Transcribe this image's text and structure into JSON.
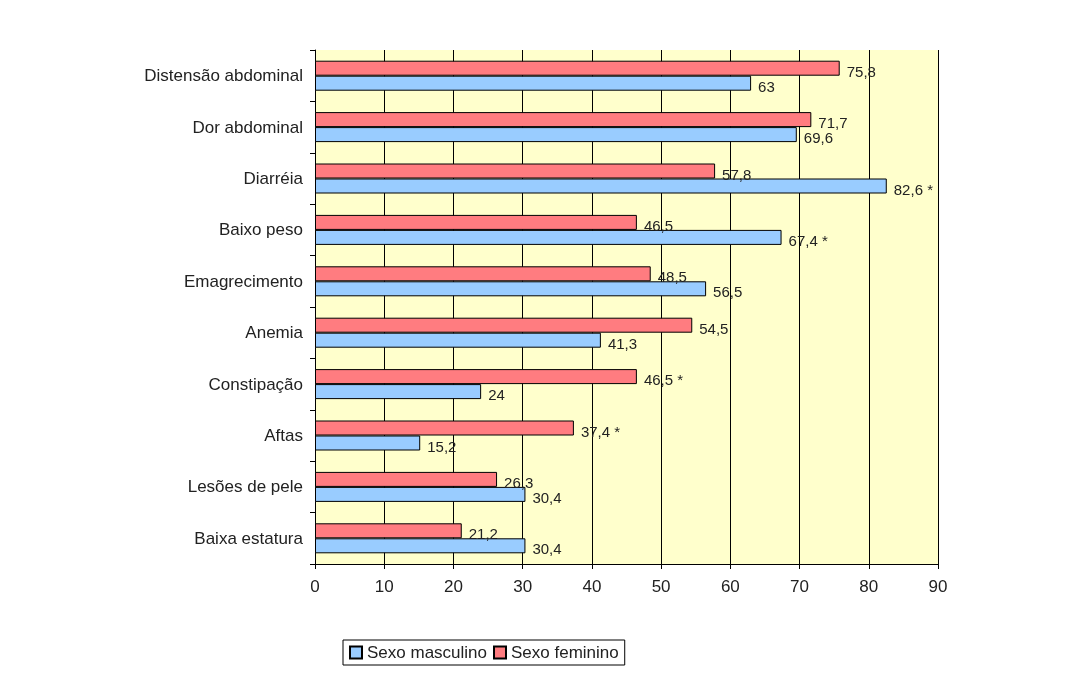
{
  "chart_data": {
    "type": "bar",
    "orientation": "horizontal",
    "categories": [
      "Distensão abdominal",
      "Dor abdominal",
      "Diarréia",
      "Baixo peso",
      "Emagrecimento",
      "Anemia",
      "Constipação",
      "Aftas",
      "Lesões de pele",
      "Baixa estatura"
    ],
    "series": [
      {
        "name": "Sexo masculino",
        "color": "#99ccff",
        "values": [
          63,
          69.6,
          82.6,
          67.4,
          56.5,
          41.3,
          24,
          15.2,
          30.4,
          30.4
        ],
        "value_labels": [
          "63",
          "69,6",
          "82,6 *",
          "67,4 *",
          "56,5",
          "41,3",
          "24",
          "15,2",
          "30,4",
          "30,4"
        ]
      },
      {
        "name": "Sexo feminino",
        "color": "#ff7c80",
        "values": [
          75.8,
          71.7,
          57.8,
          46.5,
          48.5,
          54.5,
          46.5,
          37.4,
          26.3,
          21.2
        ],
        "value_labels": [
          "75,8",
          "71,7",
          "57,8",
          "46,5",
          "48,5",
          "54,5",
          "46,5 *",
          "37,4 *",
          "26,3",
          "21,2"
        ]
      }
    ],
    "xlim": [
      0,
      90
    ],
    "xticks": [
      0,
      10,
      20,
      30,
      40,
      50,
      60,
      70,
      80,
      90
    ],
    "grid": "x",
    "legend": "bottom"
  }
}
